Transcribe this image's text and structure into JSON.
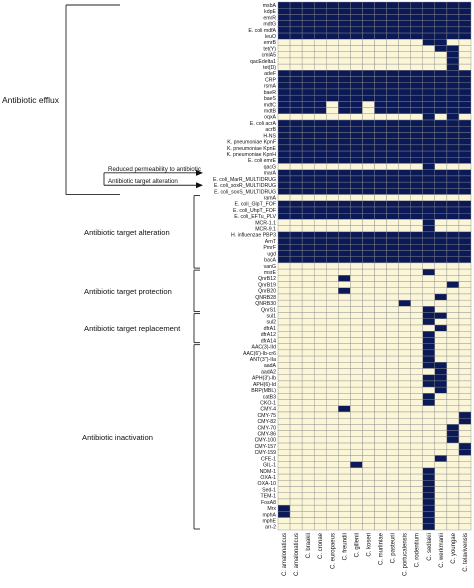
{
  "chart_data": {
    "type": "heatmap",
    "title": "",
    "xlabel": "",
    "ylabel": "",
    "colors": {
      "present": "#0b1a57",
      "absent": "#fbf6d8",
      "grid": "#8a8a8a"
    },
    "species": [
      "C. amalonaticus",
      "C. amalonaticus2",
      "C. braakii",
      "C. cronae",
      "C. europaeus",
      "C. freundii",
      "C. gillenii",
      "C. koseri",
      "C. murliniae",
      "C. pasteurii",
      "C. portucalensis",
      "C. rodentium",
      "C. sedlakii",
      "C. werkmanii",
      "C. youngae",
      "C. telavivensis"
    ],
    "species_labels": [
      "C. amalonaticus",
      "C. amalonaticus",
      "C. braakii",
      "C. cronae",
      "C. europaeus",
      "C. freundii",
      "C. gillenii",
      "C. koseri",
      "C. murliniae",
      "C. pasteurii",
      "C. portucalensis",
      "C. rodentium",
      "C. sedlakii",
      "C. werkmanii",
      "C. youngae",
      "C. telavivensis"
    ],
    "genes": [
      "msbA",
      "kdpE",
      "emrR",
      "mdtG",
      "E. coli mdfA",
      "leuO",
      "emrB",
      "tet(Y)",
      "cmlA5",
      "qacEdelta1",
      "tet(D)",
      "adeF",
      "CRP",
      "rsmA",
      "baeR",
      "baeS",
      "mdtC",
      "mdtB",
      "oqxA",
      "E. coli acrA",
      "acrB",
      "H-NS",
      "K. pneumoniae KpnF",
      "K. pneumoniae KpnE",
      "K. pneumoniae KpnH",
      "E. coli emrE",
      "qacG",
      "marA",
      "E. coli_MarR_MULTIDRUG",
      "E. coli_soxR_MULTIDRUG",
      "E. coli_soxS_MULTIDRUG",
      "ramA",
      "E. coli_GlpT_FOF",
      "E. coli_UhpT_FOF",
      "E. coli_EFTu_PLV",
      "MCR-1.1",
      "MCR-9.1",
      "H. influenzae PBP3",
      "ArnT",
      "PmrF",
      "ugd",
      "bacA",
      "vanG",
      "msrE",
      "QnrB12",
      "QnrB19",
      "QnrB20",
      "QNRB28",
      "QNRB30",
      "QnrS1",
      "sul1",
      "sul2",
      "dfrA1",
      "dfrA12",
      "dfrA14",
      "AAC(3)-IId",
      "AAC(6')-Ib-cr6",
      "ANT(3'')-IIa",
      "aadA",
      "aadA2",
      "APH(3')-Ib",
      "APH(6)-Id",
      "BRP(MBL)",
      "catB3",
      "CKO-1",
      "CMY-4",
      "CMY-75",
      "CMY-82",
      "CMY-70",
      "CMY-86",
      "CMY-100",
      "CMY-157",
      "CMY-159",
      "CFE-1",
      "GIL-1",
      "NDM-1",
      "OXA-1",
      "OXA-10",
      "Sed-1",
      "TEM-1",
      "FosA8",
      "Mrx",
      "mphA",
      "mphE",
      "arr-2"
    ],
    "matrix": [
      [
        1,
        1,
        1,
        1,
        1,
        1,
        1,
        1,
        1,
        1,
        1,
        1,
        1,
        1,
        1,
        1
      ],
      [
        1,
        1,
        1,
        1,
        1,
        1,
        1,
        1,
        1,
        1,
        1,
        1,
        1,
        1,
        1,
        1
      ],
      [
        1,
        1,
        1,
        1,
        1,
        1,
        1,
        1,
        1,
        1,
        1,
        1,
        1,
        1,
        1,
        1
      ],
      [
        1,
        1,
        1,
        1,
        1,
        1,
        1,
        1,
        1,
        1,
        1,
        1,
        1,
        1,
        1,
        1
      ],
      [
        1,
        1,
        1,
        1,
        1,
        1,
        1,
        1,
        1,
        1,
        1,
        1,
        1,
        1,
        1,
        1
      ],
      [
        1,
        1,
        1,
        1,
        1,
        1,
        1,
        1,
        1,
        1,
        1,
        1,
        1,
        1,
        1,
        1
      ],
      [
        0,
        0,
        0,
        0,
        0,
        0,
        0,
        0,
        0,
        0,
        0,
        0,
        1,
        1,
        0,
        0
      ],
      [
        0,
        0,
        0,
        0,
        0,
        0,
        0,
        0,
        0,
        0,
        0,
        0,
        0,
        1,
        1,
        0
      ],
      [
        0,
        0,
        0,
        0,
        0,
        0,
        0,
        0,
        0,
        0,
        0,
        0,
        0,
        0,
        1,
        0
      ],
      [
        0,
        0,
        0,
        0,
        0,
        0,
        0,
        0,
        0,
        0,
        0,
        0,
        0,
        0,
        1,
        0
      ],
      [
        0,
        0,
        0,
        0,
        0,
        0,
        0,
        0,
        0,
        0,
        0,
        0,
        0,
        0,
        1,
        0
      ],
      [
        1,
        1,
        1,
        1,
        1,
        1,
        1,
        1,
        1,
        1,
        1,
        1,
        1,
        1,
        1,
        1
      ],
      [
        1,
        1,
        1,
        1,
        1,
        1,
        1,
        1,
        1,
        1,
        1,
        1,
        1,
        1,
        1,
        1
      ],
      [
        1,
        1,
        1,
        1,
        1,
        1,
        1,
        1,
        1,
        1,
        1,
        1,
        1,
        1,
        1,
        1
      ],
      [
        1,
        1,
        1,
        1,
        1,
        1,
        1,
        1,
        1,
        1,
        1,
        1,
        1,
        1,
        1,
        1
      ],
      [
        1,
        1,
        1,
        1,
        1,
        1,
        1,
        1,
        1,
        1,
        1,
        1,
        1,
        1,
        1,
        1
      ],
      [
        1,
        1,
        1,
        1,
        0,
        1,
        1,
        0,
        1,
        1,
        1,
        1,
        1,
        1,
        1,
        1
      ],
      [
        1,
        1,
        1,
        1,
        0,
        1,
        1,
        0,
        1,
        1,
        1,
        1,
        1,
        1,
        1,
        1
      ],
      [
        0,
        0,
        0,
        0,
        0,
        0,
        0,
        0,
        0,
        0,
        0,
        0,
        1,
        0,
        1,
        0
      ],
      [
        1,
        1,
        1,
        1,
        1,
        1,
        1,
        1,
        1,
        1,
        1,
        1,
        1,
        1,
        1,
        1
      ],
      [
        1,
        1,
        1,
        1,
        1,
        1,
        1,
        1,
        1,
        1,
        1,
        1,
        1,
        1,
        1,
        1
      ],
      [
        1,
        1,
        1,
        1,
        1,
        1,
        1,
        1,
        1,
        1,
        1,
        1,
        1,
        1,
        1,
        1
      ],
      [
        1,
        1,
        1,
        1,
        1,
        1,
        1,
        1,
        1,
        1,
        1,
        1,
        1,
        1,
        1,
        1
      ],
      [
        1,
        1,
        1,
        1,
        1,
        1,
        1,
        1,
        1,
        1,
        1,
        1,
        1,
        1,
        1,
        1
      ],
      [
        1,
        1,
        1,
        1,
        1,
        1,
        1,
        1,
        1,
        1,
        1,
        1,
        1,
        1,
        1,
        1
      ],
      [
        1,
        1,
        1,
        1,
        1,
        1,
        1,
        1,
        1,
        1,
        1,
        1,
        1,
        1,
        1,
        1
      ],
      [
        0,
        0,
        0,
        0,
        0,
        0,
        0,
        0,
        0,
        0,
        0,
        0,
        1,
        0,
        0,
        0
      ],
      [
        1,
        1,
        1,
        1,
        1,
        1,
        1,
        1,
        1,
        1,
        1,
        1,
        1,
        1,
        1,
        1
      ],
      [
        1,
        1,
        1,
        1,
        1,
        1,
        1,
        1,
        1,
        1,
        1,
        1,
        1,
        1,
        1,
        1
      ],
      [
        1,
        1,
        1,
        1,
        1,
        1,
        1,
        1,
        1,
        1,
        1,
        1,
        1,
        1,
        1,
        1
      ],
      [
        1,
        1,
        1,
        1,
        1,
        1,
        1,
        1,
        1,
        1,
        1,
        1,
        1,
        1,
        1,
        1
      ],
      [
        0,
        0,
        0,
        0,
        0,
        0,
        0,
        0,
        0,
        0,
        0,
        0,
        0,
        0,
        0,
        0
      ],
      [
        1,
        1,
        1,
        1,
        1,
        1,
        1,
        1,
        1,
        1,
        1,
        1,
        1,
        1,
        1,
        1
      ],
      [
        1,
        1,
        1,
        1,
        1,
        1,
        1,
        1,
        1,
        1,
        1,
        1,
        1,
        1,
        1,
        1
      ],
      [
        1,
        1,
        1,
        1,
        1,
        1,
        1,
        1,
        1,
        1,
        1,
        1,
        1,
        1,
        1,
        1
      ],
      [
        0,
        0,
        0,
        0,
        0,
        0,
        0,
        0,
        0,
        0,
        0,
        0,
        1,
        0,
        0,
        0
      ],
      [
        0,
        0,
        0,
        0,
        0,
        0,
        0,
        0,
        0,
        0,
        0,
        0,
        1,
        0,
        0,
        0
      ],
      [
        1,
        1,
        1,
        1,
        1,
        1,
        1,
        1,
        1,
        1,
        1,
        1,
        1,
        1,
        1,
        1
      ],
      [
        1,
        1,
        1,
        1,
        1,
        1,
        1,
        1,
        1,
        1,
        1,
        1,
        1,
        1,
        1,
        1
      ],
      [
        1,
        1,
        1,
        1,
        1,
        1,
        1,
        1,
        1,
        1,
        1,
        1,
        1,
        1,
        1,
        1
      ],
      [
        1,
        1,
        1,
        1,
        1,
        1,
        1,
        1,
        1,
        1,
        1,
        1,
        1,
        1,
        1,
        1
      ],
      [
        1,
        1,
        1,
        1,
        1,
        1,
        1,
        1,
        1,
        1,
        1,
        1,
        1,
        1,
        1,
        1
      ],
      [
        0,
        0,
        0,
        0,
        0,
        0,
        0,
        0,
        0,
        0,
        0,
        0,
        0,
        0,
        0,
        0
      ],
      [
        0,
        0,
        0,
        0,
        0,
        0,
        0,
        0,
        0,
        0,
        0,
        0,
        1,
        0,
        0,
        0
      ],
      [
        0,
        0,
        0,
        0,
        0,
        1,
        0,
        0,
        0,
        0,
        0,
        0,
        0,
        0,
        0,
        0
      ],
      [
        0,
        0,
        0,
        0,
        0,
        0,
        0,
        0,
        0,
        0,
        0,
        0,
        0,
        0,
        1,
        0
      ],
      [
        0,
        0,
        0,
        0,
        0,
        1,
        0,
        0,
        0,
        0,
        0,
        0,
        0,
        0,
        0,
        0
      ],
      [
        0,
        0,
        0,
        0,
        0,
        0,
        0,
        0,
        0,
        0,
        0,
        0,
        0,
        1,
        0,
        0
      ],
      [
        0,
        0,
        0,
        0,
        0,
        0,
        0,
        0,
        0,
        0,
        1,
        0,
        0,
        0,
        0,
        0
      ],
      [
        0,
        0,
        0,
        0,
        0,
        0,
        0,
        0,
        0,
        0,
        0,
        0,
        1,
        0,
        0,
        0
      ],
      [
        0,
        0,
        0,
        0,
        0,
        0,
        0,
        0,
        0,
        0,
        0,
        0,
        1,
        1,
        0,
        0
      ],
      [
        0,
        0,
        0,
        0,
        0,
        0,
        0,
        0,
        0,
        0,
        0,
        0,
        1,
        0,
        0,
        0
      ],
      [
        0,
        0,
        0,
        0,
        0,
        0,
        0,
        0,
        0,
        0,
        0,
        0,
        0,
        1,
        0,
        0
      ],
      [
        0,
        0,
        0,
        0,
        0,
        0,
        0,
        0,
        0,
        0,
        0,
        0,
        1,
        0,
        0,
        0
      ],
      [
        0,
        0,
        0,
        0,
        0,
        0,
        0,
        0,
        0,
        0,
        0,
        0,
        1,
        0,
        0,
        0
      ],
      [
        0,
        0,
        0,
        0,
        0,
        0,
        0,
        0,
        0,
        0,
        0,
        0,
        1,
        0,
        0,
        0
      ],
      [
        0,
        0,
        0,
        0,
        0,
        0,
        0,
        0,
        0,
        0,
        0,
        0,
        1,
        0,
        0,
        0
      ],
      [
        0,
        0,
        0,
        0,
        0,
        0,
        0,
        0,
        0,
        0,
        0,
        0,
        1,
        0,
        0,
        0
      ],
      [
        0,
        0,
        0,
        0,
        0,
        0,
        0,
        0,
        0,
        0,
        0,
        0,
        1,
        1,
        0,
        0
      ],
      [
        0,
        0,
        0,
        0,
        0,
        0,
        0,
        0,
        0,
        0,
        0,
        0,
        0,
        1,
        0,
        0
      ],
      [
        0,
        0,
        0,
        0,
        0,
        0,
        0,
        0,
        0,
        0,
        0,
        0,
        1,
        1,
        0,
        0
      ],
      [
        0,
        0,
        0,
        0,
        0,
        0,
        0,
        0,
        0,
        0,
        0,
        0,
        1,
        1,
        0,
        0
      ],
      [
        0,
        0,
        0,
        0,
        0,
        0,
        0,
        0,
        0,
        0,
        0,
        0,
        0,
        1,
        0,
        0
      ],
      [
        0,
        0,
        0,
        0,
        0,
        0,
        0,
        0,
        0,
        0,
        0,
        0,
        1,
        0,
        0,
        0
      ],
      [
        0,
        0,
        0,
        0,
        0,
        0,
        0,
        0,
        0,
        0,
        0,
        0,
        1,
        0,
        0,
        0
      ],
      [
        0,
        0,
        0,
        0,
        0,
        1,
        0,
        0,
        0,
        0,
        0,
        0,
        0,
        0,
        0,
        0
      ],
      [
        0,
        0,
        0,
        0,
        0,
        0,
        0,
        0,
        0,
        0,
        0,
        0,
        0,
        0,
        0,
        1
      ],
      [
        0,
        0,
        0,
        0,
        0,
        0,
        0,
        0,
        0,
        0,
        0,
        0,
        0,
        0,
        0,
        1
      ],
      [
        0,
        0,
        0,
        0,
        0,
        0,
        0,
        0,
        0,
        0,
        0,
        0,
        0,
        0,
        1,
        0
      ],
      [
        0,
        0,
        0,
        0,
        0,
        0,
        0,
        0,
        0,
        0,
        0,
        0,
        0,
        0,
        1,
        0
      ],
      [
        0,
        0,
        0,
        0,
        0,
        0,
        0,
        0,
        0,
        0,
        0,
        0,
        0,
        0,
        1,
        0
      ],
      [
        0,
        0,
        0,
        0,
        0,
        0,
        0,
        0,
        0,
        0,
        0,
        0,
        0,
        0,
        0,
        1
      ],
      [
        0,
        0,
        0,
        0,
        0,
        0,
        0,
        0,
        0,
        0,
        0,
        0,
        0,
        0,
        0,
        1
      ],
      [
        0,
        0,
        0,
        0,
        0,
        0,
        0,
        0,
        0,
        0,
        0,
        0,
        0,
        1,
        0,
        0
      ],
      [
        0,
        0,
        0,
        0,
        0,
        0,
        1,
        0,
        0,
        0,
        0,
        0,
        0,
        0,
        0,
        0
      ],
      [
        0,
        0,
        0,
        0,
        0,
        0,
        0,
        0,
        0,
        0,
        0,
        0,
        1,
        0,
        0,
        0
      ],
      [
        0,
        0,
        0,
        0,
        0,
        0,
        0,
        0,
        0,
        0,
        0,
        0,
        1,
        0,
        0,
        0
      ],
      [
        0,
        0,
        0,
        0,
        0,
        0,
        0,
        0,
        0,
        0,
        0,
        0,
        1,
        0,
        0,
        0
      ],
      [
        0,
        0,
        0,
        0,
        0,
        0,
        0,
        0,
        0,
        0,
        0,
        0,
        1,
        0,
        0,
        0
      ],
      [
        0,
        0,
        0,
        0,
        0,
        0,
        0,
        0,
        0,
        0,
        0,
        0,
        1,
        0,
        0,
        0
      ],
      [
        0,
        0,
        0,
        0,
        0,
        0,
        0,
        0,
        0,
        0,
        0,
        0,
        1,
        0,
        0,
        0
      ],
      [
        1,
        0,
        0,
        0,
        0,
        0,
        0,
        0,
        0,
        0,
        0,
        0,
        1,
        0,
        0,
        0
      ],
      [
        1,
        0,
        0,
        0,
        0,
        0,
        0,
        0,
        0,
        0,
        0,
        0,
        1,
        0,
        0,
        0
      ],
      [
        0,
        0,
        0,
        0,
        0,
        0,
        0,
        0,
        0,
        0,
        0,
        0,
        1,
        0,
        0,
        0
      ],
      [
        0,
        0,
        0,
        0,
        0,
        0,
        0,
        0,
        0,
        0,
        0,
        0,
        1,
        0,
        0,
        0
      ]
    ],
    "groups": [
      {
        "label": "Antibiotic efflux",
        "start": 0,
        "end": 30
      },
      {
        "label": "Reduced permeability to antibiotic",
        "start": 27,
        "end": 27
      },
      {
        "label": "Antibiotic target alteration",
        "start": 29,
        "end": 29
      },
      {
        "label": "Antibiotic target alteration",
        "start": 31,
        "end": 42
      },
      {
        "label": "Antibiotic target protection",
        "start": 43,
        "end": 49
      },
      {
        "label": "Antibiotic target replacement",
        "start": 50,
        "end": 54
      },
      {
        "label": "Antibiotic inactivation",
        "start": 55,
        "end": 84
      }
    ],
    "legend": false,
    "grid": true
  }
}
